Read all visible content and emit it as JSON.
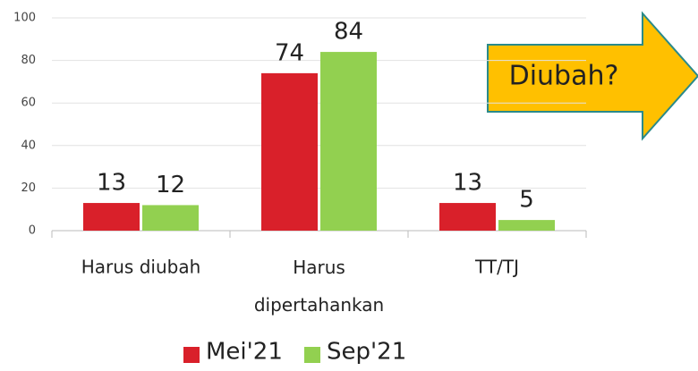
{
  "chart_data": {
    "type": "bar",
    "categories": [
      "Harus diubah",
      "Harus dipertahankan",
      "TT/TJ"
    ],
    "series": [
      {
        "name": "Mei'21",
        "color": "#d9202a",
        "values": [
          13,
          74,
          13
        ]
      },
      {
        "name": "Sep'21",
        "color": "#92d050",
        "values": [
          12,
          84,
          5
        ]
      }
    ],
    "ylim": [
      0,
      100
    ],
    "yticks": [
      0,
      20,
      40,
      60,
      80,
      100
    ],
    "grid": true,
    "annotation": "Diubah?",
    "legend": "bottom"
  }
}
